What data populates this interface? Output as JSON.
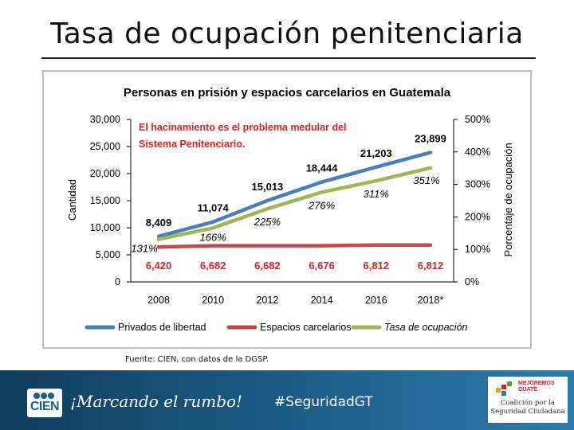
{
  "slide": {
    "title": "Tasa de ocupación penitenciaria",
    "source": "Fuente: CIEN, con datos de la DGSP."
  },
  "annotation": {
    "line1": "El hacinamiento es el problema medular del",
    "line2": "Sistema Penitenciario."
  },
  "chart_data": {
    "type": "line",
    "title": "Personas en prisión y espacios carcelarios en Guatemala",
    "categories": [
      "2008",
      "2010",
      "2012",
      "2014",
      "2016",
      "2018*"
    ],
    "ylabel": "Cantidad",
    "y2label": "Porcentaje de ocupación",
    "ylim": [
      0,
      30000
    ],
    "y2lim": [
      0,
      500
    ],
    "yticks": [
      "0",
      "5,000",
      "10,000",
      "15,000",
      "20,000",
      "25,000",
      "30,000"
    ],
    "y2ticks": [
      "0%",
      "100%",
      "200%",
      "300%",
      "400%",
      "500%"
    ],
    "legend_position": "bottom",
    "series": [
      {
        "name": "Privados de libertad",
        "axis": "left",
        "color": "#4a7ebb",
        "values": [
          8409,
          11074,
          15013,
          18444,
          21203,
          23899
        ],
        "labels": [
          "8,409",
          "11,074",
          "15,013",
          "18,444",
          "21,203",
          "23,899"
        ]
      },
      {
        "name": "Espacios carcelarios",
        "axis": "left",
        "color": "#be4b48",
        "values": [
          6420,
          6682,
          6682,
          6676,
          6812,
          6812
        ],
        "labels": [
          "6,420",
          "6,682",
          "6,682",
          "6,676",
          "6,812",
          "6,812"
        ]
      },
      {
        "name": "Tasa de ocupación",
        "axis": "right",
        "color": "#98b954",
        "values": [
          131,
          166,
          225,
          276,
          311,
          351
        ],
        "labels": [
          "131%",
          "166%",
          "225%",
          "276%",
          "311%",
          "351%"
        ]
      }
    ]
  },
  "footer": {
    "logo_text": "CIEN",
    "motto": "¡Marcando el rumbo!",
    "hashtag": "#SeguridadGT",
    "partner_badge": "MEJOREMOS GUATE",
    "partner_name_line1": "Coalición por la",
    "partner_name_line2": "Seguridad Ciudadana"
  },
  "colors": {
    "footer_band": "#1e5f88",
    "annotation_red": "#e02020",
    "spaces_label_red": "#e02020"
  }
}
